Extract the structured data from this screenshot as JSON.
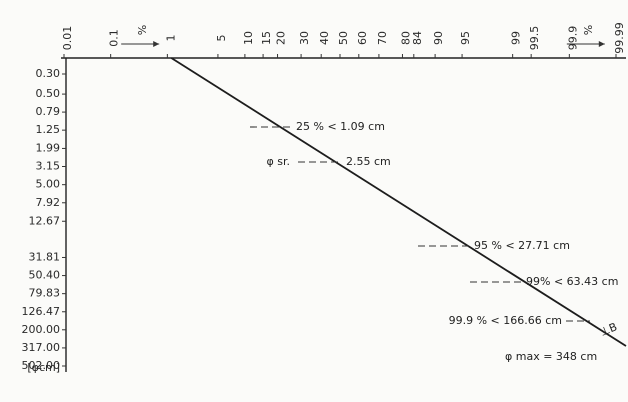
{
  "chart_data": {
    "type": "line",
    "x_axis": {
      "scale": "probability",
      "position": "top",
      "ticks": [
        "0.01",
        "0.1",
        "1",
        "5",
        "10",
        "15",
        "20",
        "30",
        "40",
        "50",
        "60",
        "70",
        "80",
        "84",
        "90",
        "95",
        "99",
        "99.5",
        "99.9",
        "99.99"
      ],
      "unit_labels": [
        "%",
        "%"
      ]
    },
    "y_axis": {
      "scale": "log",
      "position": "left",
      "ticks": [
        "0.30",
        "0.50",
        "0.79",
        "1.25",
        "1.99",
        "3.15",
        "5.00",
        "7.92",
        "12.67",
        "31.81",
        "50.40",
        "79.83",
        "126.47",
        "200.00",
        "317.00",
        "502.00"
      ],
      "label": "[φcm]"
    },
    "series": [
      {
        "label": "⊥B",
        "points": [
          {
            "x": 1,
            "y": 0.3
          },
          {
            "x": 25,
            "y": 1.09
          },
          {
            "x": 50,
            "y": 2.55
          },
          {
            "x": 95,
            "y": 27.71
          },
          {
            "x": 99,
            "y": 63.43
          },
          {
            "x": 99.9,
            "y": 166.66
          },
          {
            "x": 99.99,
            "y": 348
          }
        ]
      }
    ],
    "annotations": [
      {
        "text": "25 % < 1.09 cm",
        "x": 25,
        "y": 1.09
      },
      {
        "text": "φ sr.",
        "x": 50,
        "y": 2.55
      },
      {
        "text": "2.55 cm",
        "x": 50,
        "y": 2.55
      },
      {
        "text": "95 % < 27.71 cm",
        "x": 95,
        "y": 27.71
      },
      {
        "text": "99% < 63.43 cm",
        "x": 99,
        "y": 63.43
      },
      {
        "text": "99.9 % < 166.66 cm",
        "x": 99.9,
        "y": 166.66
      },
      {
        "text": "φ max = 348 cm",
        "x": 99.99,
        "y": 348
      }
    ],
    "grid": false
  }
}
